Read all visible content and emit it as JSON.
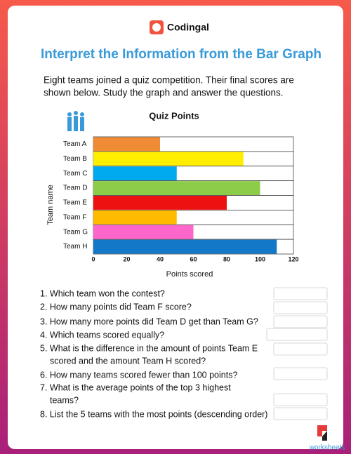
{
  "header": {
    "brand": "Codingal"
  },
  "title": "Interpret the Information from the Bar Graph",
  "intro": {
    "lines": [
      "Eight teams joined a quiz competition. Their final scores are",
      "shown below. Study the graph and answer the questions."
    ]
  },
  "chart_data": {
    "type": "bar",
    "orientation": "horizontal",
    "title": "Quiz Points",
    "x_label": "Points scored",
    "y_label": "Team name",
    "categories": [
      "Team A",
      "Team B",
      "Team C",
      "Team D",
      "Team E",
      "Team F",
      "Team G",
      "Team H"
    ],
    "values": [
      40,
      90,
      50,
      100,
      80,
      50,
      60,
      110
    ],
    "colors": [
      "#ef8a35",
      "#ffee00",
      "#00aaee",
      "#8dcc48",
      "#ee1111",
      "#ffbb00",
      "#ff66cc",
      "#1478c8"
    ],
    "xlim": [
      0,
      120
    ],
    "xticks": [
      0,
      20,
      40,
      60,
      80,
      100,
      120
    ]
  },
  "questions": [
    {
      "lines": [
        "1. Which team won the contest?"
      ]
    },
    {
      "lines": [
        "2. How many points did Team F score?"
      ]
    },
    {
      "lines": [
        "3. How many more points did Team D get than Team G?"
      ]
    },
    {
      "lines": [
        "4. Which teams scored equally?"
      ]
    },
    {
      "lines": [
        "5. What is the difference in the amount of points Team E",
        "scored and the amount Team H scored?"
      ]
    },
    {
      "lines": [
        "6. How many teams scored fewer than 100 points?"
      ]
    },
    {
      "lines": [
        "7. What is the average points of the top 3 highest",
        "teams?"
      ]
    },
    {
      "lines": [
        "8. List the 5 teams with the most points (descending order)"
      ]
    }
  ],
  "footer": {
    "brand": "worksheets"
  }
}
